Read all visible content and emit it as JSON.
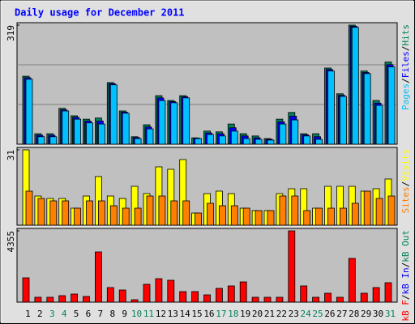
{
  "chart_data": [
    {
      "type": "bar",
      "title": "Daily usage for December 2011",
      "ylim": [
        0,
        319
      ],
      "yticks": [
        319
      ],
      "legend_separator": "/",
      "series": [
        {
          "name": "Hits",
          "color": "#00805c",
          "values": [
            182,
            28,
            28,
            96,
            76,
            67,
            70,
            165,
            89,
            20,
            52,
            130,
            117,
            130,
            17,
            35,
            33,
            54,
            28,
            22,
            15,
            67,
            85,
            28,
            28,
            204,
            135,
            319,
            196,
            117,
            220
          ]
        },
        {
          "name": "Files",
          "color": "#0000ff",
          "values": [
            178,
            24,
            24,
            92,
            72,
            62,
            62,
            162,
            86,
            18,
            46,
            124,
            114,
            127,
            16,
            30,
            28,
            44,
            22,
            17,
            13,
            60,
            75,
            25,
            20,
            200,
            131,
            316,
            192,
            110,
            213
          ]
        },
        {
          "name": "Pages",
          "color": "#00c0ff",
          "values": [
            174,
            20,
            20,
            89,
            67,
            57,
            54,
            159,
            83,
            15,
            41,
            117,
            111,
            124,
            15,
            26,
            22,
            35,
            15,
            13,
            11,
            54,
            65,
            22,
            13,
            196,
            128,
            313,
            189,
            104,
            207
          ]
        }
      ]
    },
    {
      "type": "bar",
      "ylim": [
        0,
        31
      ],
      "yticks": [
        31
      ],
      "legend_separator": "/",
      "series": [
        {
          "name": "Visits",
          "color": "#ffff00",
          "values": [
            31,
            12,
            11,
            11,
            7,
            12,
            20,
            12,
            11,
            16,
            13,
            24,
            23,
            27,
            5,
            13,
            14,
            13,
            7,
            6,
            6,
            13,
            15,
            15,
            7,
            16,
            16,
            16,
            14,
            15,
            19
          ]
        },
        {
          "name": "Sites",
          "color": "#ff8000",
          "values": [
            14,
            11,
            10,
            10,
            7,
            10,
            10,
            8,
            7,
            7,
            12,
            12,
            10,
            10,
            5,
            9,
            8,
            8,
            7,
            6,
            6,
            12,
            12,
            6,
            7,
            7,
            7,
            9,
            14,
            11,
            12
          ]
        }
      ]
    },
    {
      "type": "bar",
      "ylim": [
        0,
        4355
      ],
      "yticks": [
        4355
      ],
      "legend_separator": "/",
      "categories": [
        "1",
        "2",
        "3",
        "4",
        "5",
        "6",
        "7",
        "8",
        "9",
        "10",
        "11",
        "12",
        "13",
        "14",
        "15",
        "16",
        "17",
        "18",
        "19",
        "20",
        "21",
        "22",
        "23",
        "24",
        "25",
        "26",
        "27",
        "28",
        "29",
        "30",
        "31"
      ],
      "category_colors": [
        "#000000",
        "#000000",
        "#00805c",
        "#00805c",
        "#000000",
        "#000000",
        "#000000",
        "#000000",
        "#000000",
        "#00805c",
        "#00805c",
        "#000000",
        "#000000",
        "#000000",
        "#000000",
        "#000000",
        "#00805c",
        "#00805c",
        "#000000",
        "#000000",
        "#000000",
        "#000000",
        "#000000",
        "#00805c",
        "#00805c",
        "#000000",
        "#000000",
        "#000000",
        "#000000",
        "#000000",
        "#00805c"
      ],
      "series": [
        {
          "name": "kB F",
          "color": "#ff0000",
          "values": [
            1485,
            297,
            297,
            396,
            495,
            346,
            3068,
            891,
            742,
            148,
            1089,
            1435,
            1336,
            643,
            643,
            445,
            841,
            990,
            1237,
            297,
            297,
            297,
            4355,
            990,
            297,
            544,
            297,
            2672,
            544,
            891,
            1188
          ]
        }
      ],
      "extra_legend": [
        {
          "name": "kB In",
          "color": "#0000ff"
        },
        {
          "name": "kB Out",
          "color": "#00805c"
        }
      ]
    }
  ]
}
